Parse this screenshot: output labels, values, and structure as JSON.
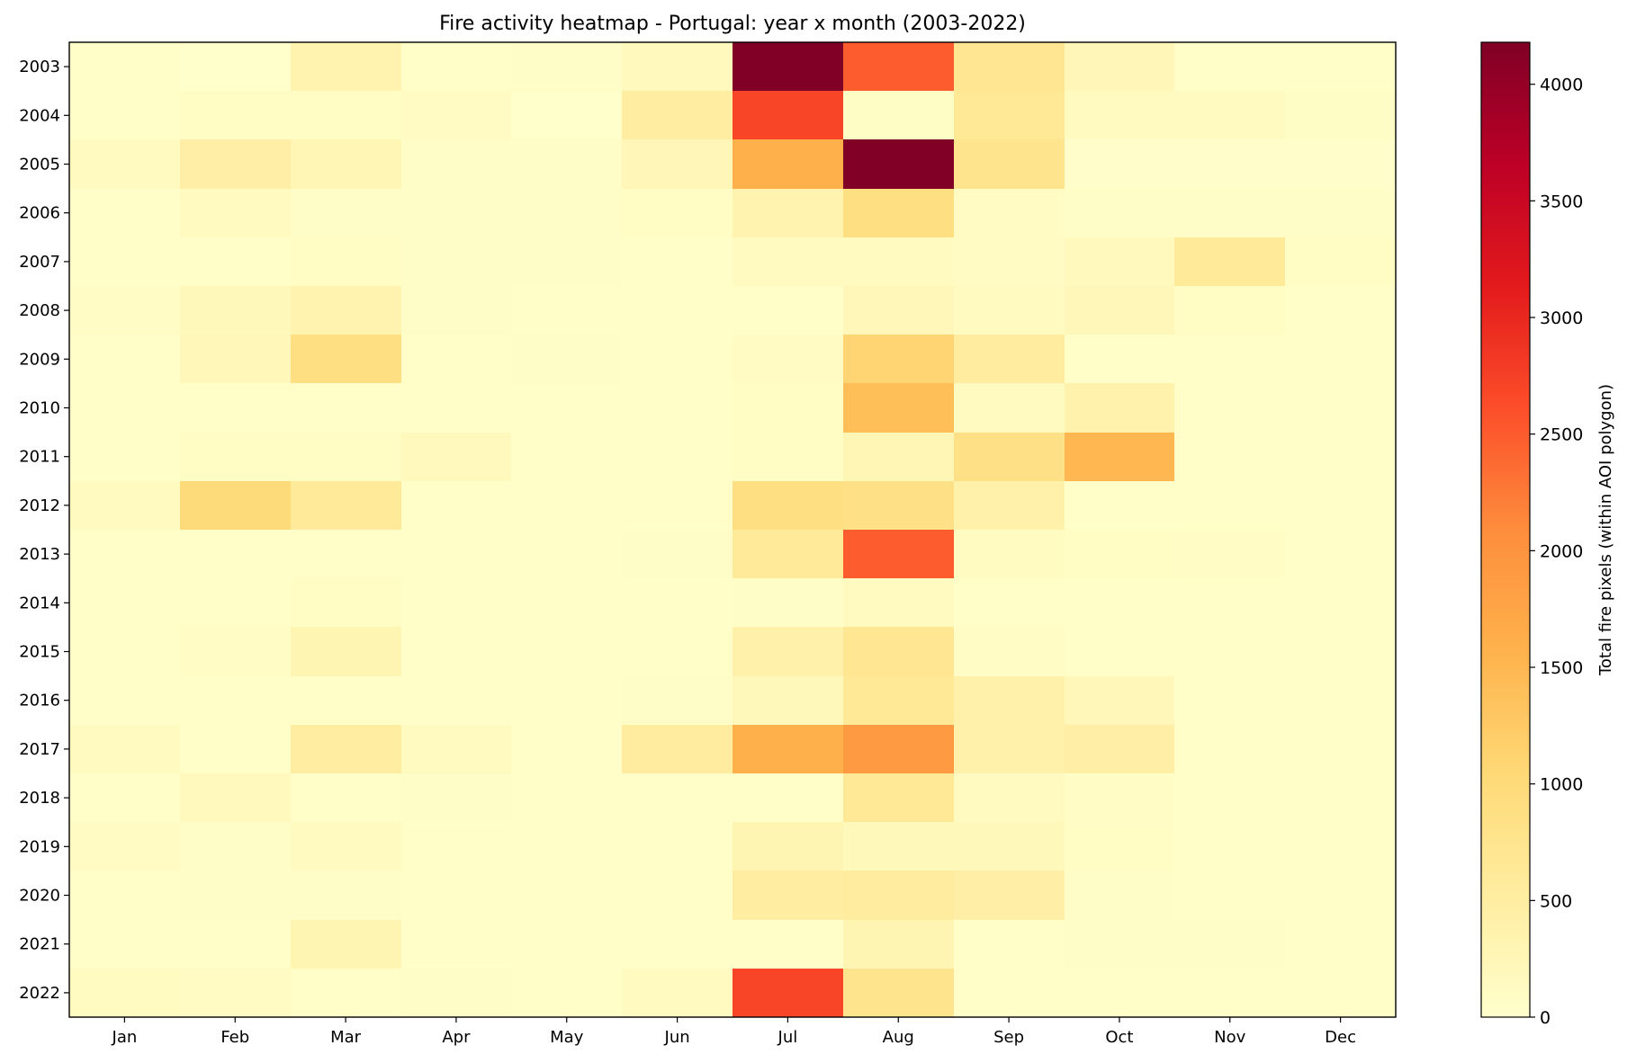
{
  "chart_data": {
    "type": "heatmap",
    "title": "Fire activity heatmap - Portugal: year x month (2003-2022)",
    "xlabel": "",
    "ylabel": "",
    "colorbar_label": "Total fire pixels (within AOI polygon)",
    "colormap": "YlOrRd",
    "colormap_stops": [
      "#ffffcc",
      "#ffeda0",
      "#fed976",
      "#feb24c",
      "#fd8d3c",
      "#fc4e2a",
      "#e31a1c",
      "#bd0026",
      "#800026"
    ],
    "vmin": 0,
    "vmax": 4180,
    "colorbar_ticks": [
      0,
      500,
      1000,
      1500,
      2000,
      2500,
      3000,
      3500,
      4000
    ],
    "grid": false,
    "x_categories": [
      "Jan",
      "Feb",
      "Mar",
      "Apr",
      "May",
      "Jun",
      "Jul",
      "Aug",
      "Sep",
      "Oct",
      "Nov",
      "Dec"
    ],
    "y_categories": [
      "2003",
      "2004",
      "2005",
      "2006",
      "2007",
      "2008",
      "2009",
      "2010",
      "2011",
      "2012",
      "2013",
      "2014",
      "2015",
      "2016",
      "2017",
      "2018",
      "2019",
      "2020",
      "2021",
      "2022"
    ],
    "values": [
      [
        30,
        10,
        350,
        30,
        60,
        180,
        4180,
        2500,
        700,
        250,
        30,
        50
      ],
      [
        40,
        100,
        90,
        120,
        10,
        500,
        2700,
        70,
        650,
        150,
        150,
        70
      ],
      [
        150,
        450,
        270,
        60,
        60,
        250,
        1600,
        4180,
        750,
        20,
        20,
        20
      ],
      [
        40,
        150,
        60,
        60,
        60,
        100,
        350,
        900,
        120,
        60,
        60,
        60
      ],
      [
        40,
        30,
        100,
        60,
        60,
        40,
        150,
        150,
        120,
        180,
        600,
        100
      ],
      [
        80,
        200,
        350,
        60,
        30,
        30,
        40,
        230,
        150,
        220,
        100,
        40
      ],
      [
        40,
        220,
        900,
        40,
        60,
        30,
        120,
        1100,
        550,
        50,
        50,
        50
      ],
      [
        40,
        30,
        30,
        50,
        50,
        30,
        100,
        1400,
        140,
        380,
        50,
        50
      ],
      [
        40,
        90,
        90,
        180,
        40,
        40,
        100,
        280,
        850,
        1500,
        40,
        40
      ],
      [
        150,
        1000,
        600,
        40,
        40,
        40,
        900,
        850,
        400,
        40,
        40,
        40
      ],
      [
        40,
        30,
        30,
        30,
        30,
        60,
        600,
        2500,
        130,
        100,
        80,
        40
      ],
      [
        40,
        40,
        100,
        40,
        40,
        40,
        60,
        150,
        30,
        30,
        30,
        30
      ],
      [
        50,
        80,
        300,
        40,
        40,
        40,
        400,
        700,
        80,
        40,
        40,
        40
      ],
      [
        40,
        40,
        40,
        40,
        40,
        60,
        200,
        650,
        400,
        220,
        40,
        40
      ],
      [
        150,
        40,
        500,
        150,
        40,
        550,
        1600,
        1900,
        400,
        450,
        50,
        50
      ],
      [
        50,
        180,
        40,
        60,
        40,
        40,
        30,
        650,
        150,
        80,
        40,
        40
      ],
      [
        120,
        60,
        150,
        40,
        40,
        40,
        300,
        200,
        200,
        100,
        40,
        40
      ],
      [
        40,
        60,
        60,
        30,
        40,
        40,
        500,
        550,
        450,
        60,
        40,
        40
      ],
      [
        40,
        40,
        300,
        40,
        40,
        40,
        40,
        300,
        40,
        60,
        60,
        40
      ],
      [
        130,
        120,
        40,
        60,
        30,
        150,
        2700,
        750,
        30,
        30,
        30,
        30
      ]
    ]
  }
}
